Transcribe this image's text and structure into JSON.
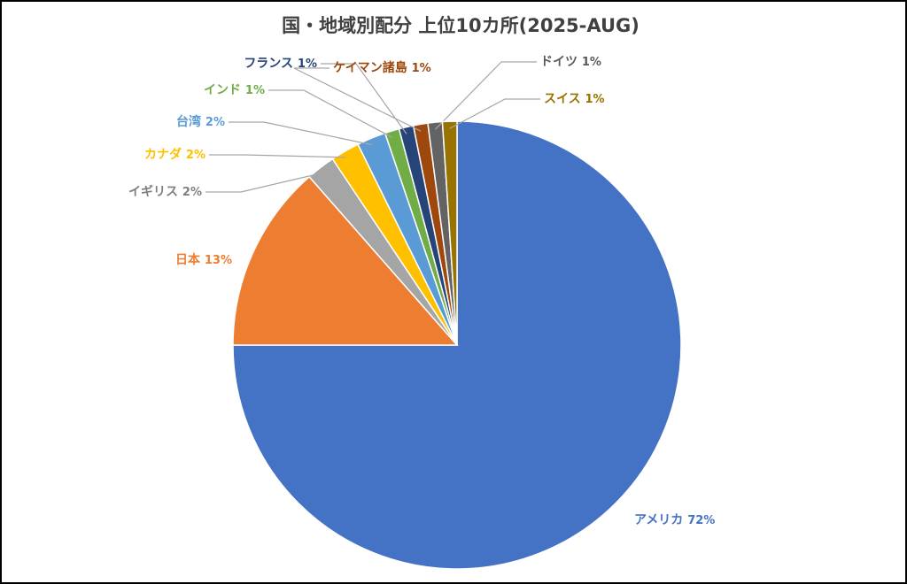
{
  "chart_data": {
    "type": "pie",
    "title": "国・地域別配分 上位10カ所(2025-AUG)",
    "categories": [
      "アメリカ",
      "日本",
      "イギリス",
      "カナダ",
      "台湾",
      "インド",
      "フランス",
      "ケイマン諸島",
      "ドイツ",
      "スイス"
    ],
    "values": [
      72,
      13,
      2,
      2,
      2,
      1,
      1,
      1,
      1,
      1
    ],
    "value_labels": [
      "72%",
      "13%",
      "2%",
      "2%",
      "2%",
      "1%",
      "1%",
      "1%",
      "1%",
      "1%"
    ],
    "colors": [
      "#4472c4",
      "#ed7d31",
      "#a5a5a5",
      "#ffc000",
      "#5b9bd5",
      "#70ad47",
      "#264478",
      "#9e480e",
      "#636363",
      "#997300"
    ]
  }
}
